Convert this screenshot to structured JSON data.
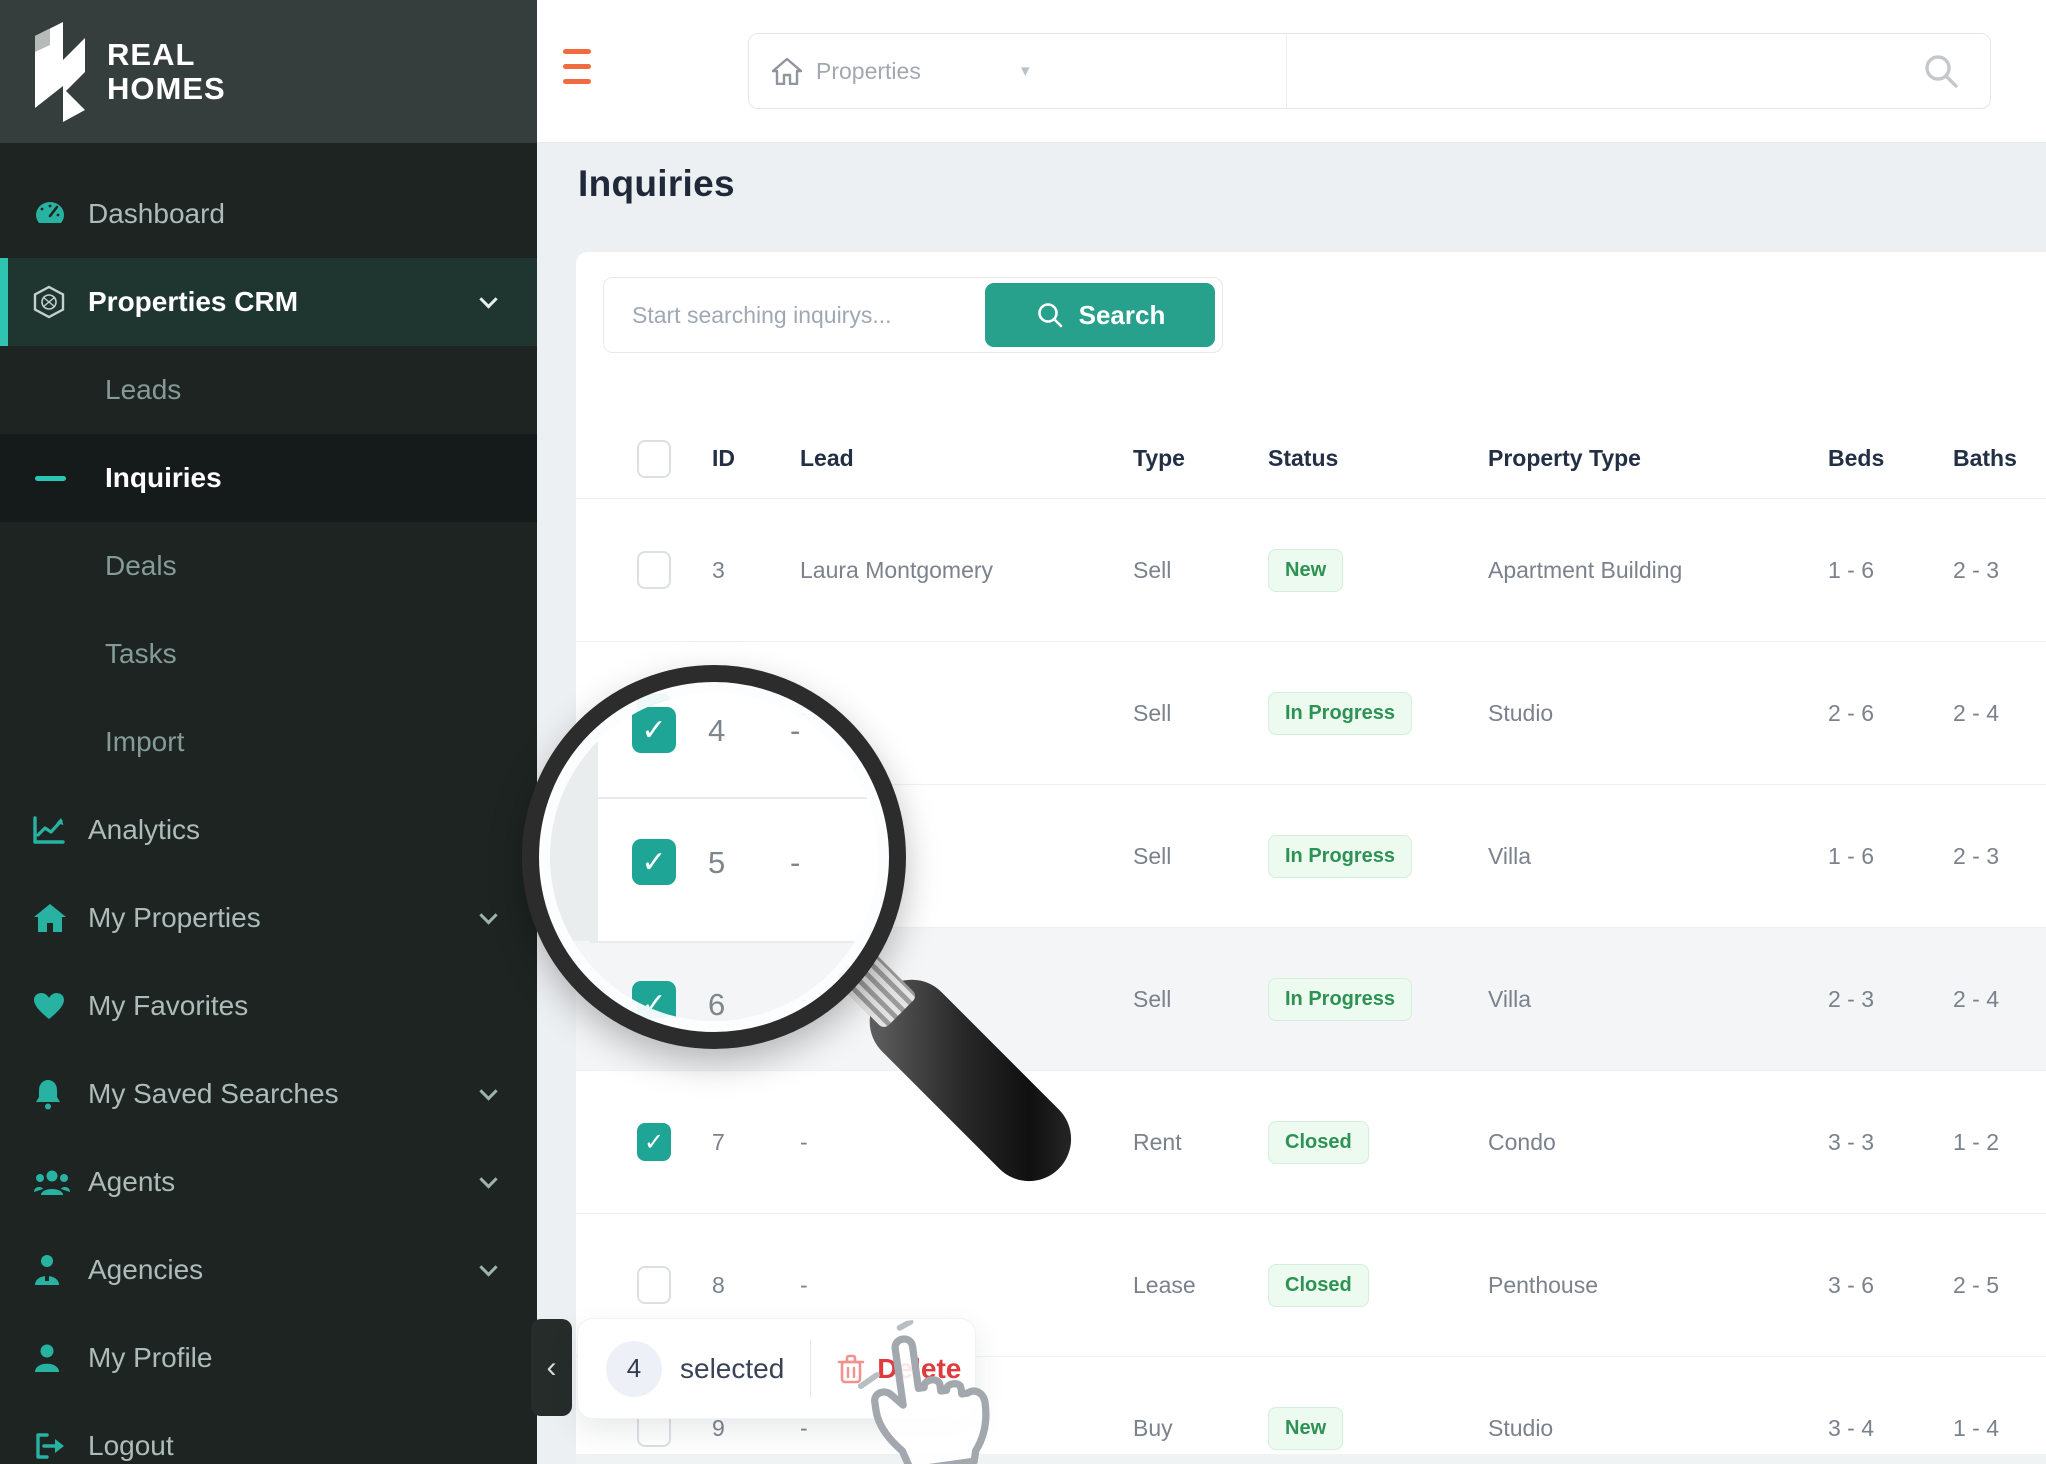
{
  "brand": {
    "line1": "REAL",
    "line2": "HOMES"
  },
  "sidebar": {
    "items": [
      {
        "label": "Dashboard",
        "icon": "dashboard-icon",
        "type": "main"
      },
      {
        "label": "Properties CRM",
        "icon": "crm-icon",
        "type": "main",
        "active": true,
        "chevron": true
      },
      {
        "label": "Leads",
        "type": "sub"
      },
      {
        "label": "Inquiries",
        "type": "sub",
        "active": true
      },
      {
        "label": "Deals",
        "type": "sub"
      },
      {
        "label": "Tasks",
        "type": "sub"
      },
      {
        "label": "Import",
        "type": "sub"
      },
      {
        "label": "Analytics",
        "icon": "analytics-icon",
        "type": "main"
      },
      {
        "label": "My Properties",
        "icon": "home-icon",
        "type": "main",
        "chevron": true
      },
      {
        "label": "My Favorites",
        "icon": "heart-icon",
        "type": "main"
      },
      {
        "label": "My Saved Searches",
        "icon": "bell-icon",
        "type": "main",
        "chevron": true
      },
      {
        "label": "Agents",
        "icon": "agents-icon",
        "type": "main",
        "chevron": true
      },
      {
        "label": "Agencies",
        "icon": "agency-icon",
        "type": "main",
        "chevron": true
      },
      {
        "label": "My Profile",
        "icon": "profile-icon",
        "type": "main"
      },
      {
        "label": "Logout",
        "icon": "logout-icon",
        "type": "main"
      }
    ],
    "collapse_chevron": "‹"
  },
  "topbar": {
    "nav_select_label": "Properties",
    "caret": "▾",
    "search_value": ""
  },
  "page": {
    "title": "Inquiries"
  },
  "search": {
    "placeholder": "Start searching inquirys...",
    "button_label": "Search"
  },
  "table": {
    "headers": [
      "ID",
      "Lead",
      "Type",
      "Status",
      "Property Type",
      "Beds",
      "Baths"
    ],
    "rows": [
      {
        "id": "3",
        "lead": "Laura Montgomery",
        "type": "Sell",
        "status": "New",
        "property_type": "Apartment Building",
        "beds": "1 - 6",
        "baths": "2 - 3",
        "checked": false
      },
      {
        "id": "4",
        "lead": "-",
        "type": "Sell",
        "status": "In Progress",
        "property_type": "Studio",
        "beds": "2 - 6",
        "baths": "2 - 4",
        "checked": true
      },
      {
        "id": "5",
        "lead": "-",
        "type": "Sell",
        "status": "In Progress",
        "property_type": "Villa",
        "beds": "1 - 6",
        "baths": "2 - 3",
        "checked": true
      },
      {
        "id": "6",
        "lead": "-",
        "type": "Sell",
        "status": "In Progress",
        "property_type": "Villa",
        "beds": "2 - 3",
        "baths": "2 - 4",
        "checked": true,
        "shaded": true
      },
      {
        "id": "7",
        "lead": "-",
        "type": "Rent",
        "status": "Closed",
        "property_type": "Condo",
        "beds": "3 - 3",
        "baths": "1 - 2",
        "checked": true
      },
      {
        "id": "8",
        "lead": "-",
        "type": "Lease",
        "status": "Closed",
        "property_type": "Penthouse",
        "beds": "3 - 6",
        "baths": "2 - 5",
        "checked": false
      },
      {
        "id": "9",
        "lead": "-",
        "type": "Buy",
        "status": "New",
        "property_type": "Studio",
        "beds": "3 - 4",
        "baths": "1 - 4",
        "checked": false
      }
    ]
  },
  "selection_bar": {
    "count": "4",
    "label": "selected",
    "delete_label": "Delete"
  },
  "magnifier": {
    "rows": [
      {
        "id": "4",
        "lead": "-"
      },
      {
        "id": "5",
        "lead": "-"
      },
      {
        "id": "6",
        "lead": "-"
      }
    ]
  },
  "colors": {
    "teal_primary": "#27a08c",
    "teal_checkbox": "#1fa595",
    "teal_accent": "#2cc7b4",
    "orange_hamburger": "#f06b3f",
    "badge_green_text": "#2e9254",
    "badge_green_bg": "#ecfaef",
    "delete_red": "#e0393e",
    "sidebar_bg": "#1d2422",
    "sidebar_header_bg": "#353e3c"
  }
}
